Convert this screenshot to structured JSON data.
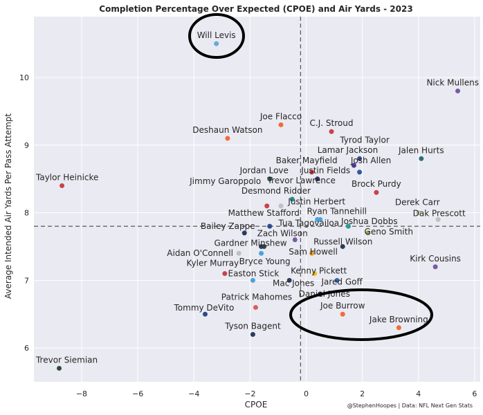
{
  "chart_data": {
    "type": "scatter",
    "title": "Completion Percentage Over Expected (CPOE) and Air Yards - 2023",
    "xlabel": "CPOE",
    "ylabel": "Average Intended Air Yards Per Pass Attempt",
    "xlim": [
      -9.7,
      6.2
    ],
    "ylim": [
      5.5,
      10.9
    ],
    "xticks": [
      -8,
      -6,
      -4,
      -2,
      0,
      2,
      4,
      6
    ],
    "yticks": [
      6,
      7,
      8,
      9,
      10
    ],
    "grid": true,
    "ref_lines": {
      "x": -0.2,
      "y": 7.8
    },
    "credit": "@StephenHoopes | Data: NFL Next Gen Stats",
    "highlight_color": "#000000",
    "points": [
      {
        "name": "Will Levis",
        "x": -3.2,
        "y": 10.5,
        "color": "#6aa8d8"
      },
      {
        "name": "Nick Mullens",
        "x": 5.4,
        "y": 9.8,
        "color": "#7b5aa6"
      },
      {
        "name": "Joe Flacco",
        "x": -0.9,
        "y": 9.3,
        "color": "#f26b3a"
      },
      {
        "name": "C.J. Stroud",
        "x": 0.9,
        "y": 9.2,
        "color": "#c8434b"
      },
      {
        "name": "Deshaun Watson",
        "x": -2.8,
        "y": 9.1,
        "color": "#f26b3a"
      },
      {
        "name": "Tyrod Taylor",
        "x": 1.9,
        "y": 8.8,
        "color": "#3a4e8c"
      },
      {
        "name": "Lamar Jackson",
        "x": 1.7,
        "y": 8.7,
        "color": "#4b3a8c"
      },
      {
        "name": "Jalen Hurts",
        "x": 4.1,
        "y": 8.8,
        "color": "#2f6f78"
      },
      {
        "name": "Josh Allen",
        "x": 1.9,
        "y": 8.6,
        "color": "#2f5aa0"
      },
      {
        "name": "Baker Mayfield",
        "x": 0.2,
        "y": 8.6,
        "color": "#c8434b"
      },
      {
        "name": "Justin Fields",
        "x": 0.4,
        "y": 8.5,
        "color": "#2e3a5c"
      },
      {
        "name": "Jordan Love",
        "x": -1.3,
        "y": 8.5,
        "color": "#2f5a4a"
      },
      {
        "name": "Brock Purdy",
        "x": 2.5,
        "y": 8.3,
        "color": "#c8434b"
      },
      {
        "name": "Taylor Heinicke",
        "x": -8.7,
        "y": 8.4,
        "color": "#c8434b"
      },
      {
        "name": "Trevor Lawrence",
        "x": -0.5,
        "y": 8.2,
        "color": "#2a8a8f"
      },
      {
        "name": "Justin Herbert",
        "x": 0.4,
        "y": 7.9,
        "color": "#4aa3e0"
      },
      {
        "name": "Jimmy Garoppolo",
        "x": -1.4,
        "y": 8.1,
        "color": "#c8434b"
      },
      {
        "name": "Desmond Ridder",
        "x": -0.9,
        "y": 8.1,
        "color": "#c0c0c0"
      },
      {
        "name": "Derek Carr",
        "x": 4.0,
        "y": 8.0,
        "color": "#c8c8b4"
      },
      {
        "name": "Dak Prescott",
        "x": 4.7,
        "y": 7.9,
        "color": "#c0c0c0"
      },
      {
        "name": "Ryan Tannehill",
        "x": 0.5,
        "y": 7.9,
        "color": "#4aa3e0"
      },
      {
        "name": "Matthew Stafford",
        "x": -1.3,
        "y": 7.8,
        "color": "#2f4a8c"
      },
      {
        "name": "Joshua Dobbs",
        "x": 1.5,
        "y": 7.8,
        "color": "#2a9a9a"
      },
      {
        "name": "Geno Smith",
        "x": 2.2,
        "y": 7.7,
        "color": "#8ab34a"
      },
      {
        "name": "Bailey Zappe",
        "x": -2.2,
        "y": 7.7,
        "color": "#2e3a5c"
      },
      {
        "name": "Zach Wilson",
        "x": -1.5,
        "y": 7.5,
        "color": "#2f4a3a"
      },
      {
        "name": "Tua Tagovailoa",
        "x": -0.4,
        "y": 7.6,
        "color": "#7b5aa6"
      },
      {
        "name": "Gardner Minshew",
        "x": -1.6,
        "y": 7.5,
        "color": "#2e3a5c"
      },
      {
        "name": "Aidan O'Connell",
        "x": -2.4,
        "y": 7.4,
        "color": "#c0c0c0"
      },
      {
        "name": "Bryce Young",
        "x": -1.6,
        "y": 7.4,
        "color": "#4aa3e0"
      },
      {
        "name": "Russell Wilson",
        "x": 1.3,
        "y": 7.5,
        "color": "#2e3a5c"
      },
      {
        "name": "Sam Howell",
        "x": 0.2,
        "y": 7.4,
        "color": "#e0a020"
      },
      {
        "name": "Kirk Cousins",
        "x": 4.6,
        "y": 7.2,
        "color": "#7b5aa6"
      },
      {
        "name": "Kyler Murray",
        "x": -2.9,
        "y": 7.1,
        "color": "#c8434b"
      },
      {
        "name": "Kenny Pickett",
        "x": 0.3,
        "y": 7.1,
        "color": "#f0c020"
      },
      {
        "name": "Easton Stick",
        "x": -1.9,
        "y": 7.0,
        "color": "#4aa3e0"
      },
      {
        "name": "Mac Jones",
        "x": -0.6,
        "y": 7.0,
        "color": "#2e3a5c"
      },
      {
        "name": "Jared Goff",
        "x": 1.1,
        "y": 7.0,
        "color": "#2f6fb0"
      },
      {
        "name": "Daniel Jones",
        "x": 0.5,
        "y": 6.8,
        "color": "#2f4a8c"
      },
      {
        "name": "Joe Burrow",
        "x": 1.3,
        "y": 6.5,
        "color": "#f26b3a"
      },
      {
        "name": "Jake Browning",
        "x": 3.3,
        "y": 6.3,
        "color": "#f26b3a"
      },
      {
        "name": "Tommy DeVito",
        "x": -3.6,
        "y": 6.5,
        "color": "#2f4a8c"
      },
      {
        "name": "Patrick Mahomes",
        "x": -1.8,
        "y": 6.6,
        "color": "#e05a5a"
      },
      {
        "name": "Tyson Bagent",
        "x": -1.9,
        "y": 6.2,
        "color": "#2e3a5c"
      },
      {
        "name": "Trevor Siemian",
        "x": -8.8,
        "y": 5.7,
        "color": "#2f4a3a"
      }
    ]
  }
}
